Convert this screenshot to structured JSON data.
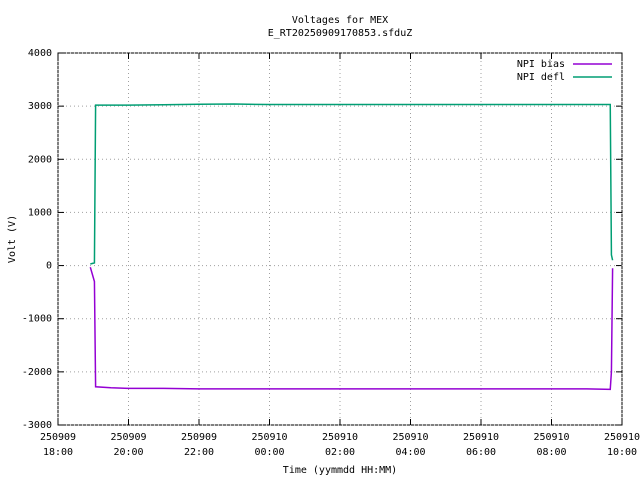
{
  "chart_data": {
    "type": "line",
    "title": "Voltages for MEX",
    "subtitle": "E_RT20250909170853.sfduZ",
    "x_label": "Time (yymmdd HH:MM)",
    "y_label": "Volt (V)",
    "x": [
      "250909 18:55",
      "250909 19:02",
      "250909 19:04",
      "250909 19:30",
      "250909 20:00",
      "250909 21:00",
      "250909 22:00",
      "250909 23:00",
      "250910 00:00",
      "250910 01:00",
      "250910 02:00",
      "250910 03:00",
      "250910 04:00",
      "250910 05:00",
      "250910 06:00",
      "250910 07:00",
      "250910 08:00",
      "250910 09:00",
      "250910 09:40",
      "250910 09:42",
      "250910 09:44"
    ],
    "series": [
      {
        "name": "NPI bias",
        "color": "#9400d3",
        "values": [
          -30,
          -300,
          -2280,
          -2300,
          -2310,
          -2310,
          -2320,
          -2320,
          -2320,
          -2320,
          -2320,
          -2320,
          -2320,
          -2320,
          -2320,
          -2320,
          -2320,
          -2320,
          -2330,
          -2000,
          -50
        ]
      },
      {
        "name": "NPI defl",
        "color": "#009e73",
        "values": [
          30,
          50,
          3020,
          3020,
          3020,
          3025,
          3035,
          3040,
          3030,
          3030,
          3030,
          3030,
          3030,
          3030,
          3030,
          3030,
          3030,
          3030,
          3030,
          200,
          100
        ]
      }
    ],
    "xlim": [
      "250909 18:00",
      "250910 10:00"
    ],
    "xticks": [
      "250909 18:00",
      "250909 20:00",
      "250909 22:00",
      "250910 00:00",
      "250910 02:00",
      "250910 04:00",
      "250910 06:00",
      "250910 08:00",
      "250910 10:00"
    ],
    "ylim": [
      -3000,
      4000
    ],
    "yticks": [
      -3000,
      -2000,
      -1000,
      0,
      1000,
      2000,
      3000,
      4000
    ],
    "grid": true,
    "legend": "top-right"
  }
}
